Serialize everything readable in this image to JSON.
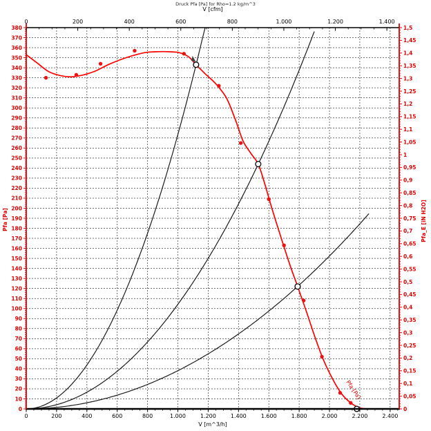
{
  "title": "Druck Pfa [Pa] for Rho=1.2 kg/m^3",
  "colors": {
    "axis_red": "#dd0000",
    "label_red": "#e00000",
    "curve_red": "#ff0000",
    "dot_red": "#ee1111",
    "black": "#000000",
    "curve_black": "#1a1a1a",
    "grid": "#3c3c3c",
    "marker_fill": "#ffffff"
  },
  "chart_data": {
    "type": "line",
    "title": "Druck Pfa [Pa] for Rho=1.2 kg/m^3",
    "grid": "dashed, every 200 m^3/h vertical, every 10 Pa horizontal",
    "legend": "none",
    "cfm_per_m3h": 0.5886,
    "axes": {
      "bottom": {
        "label": "V [m^3/h]",
        "min": 0,
        "max": 2460,
        "major": 200,
        "minor": 50,
        "labels": [
          "0",
          "200",
          "400",
          "600",
          "800",
          "1.000",
          "1.200",
          "1.400",
          "1.600",
          "1.800",
          "2.000",
          "2.200",
          "2.400"
        ]
      },
      "top": {
        "label": "V [cfm]",
        "min": 0,
        "max": 1448,
        "major": 200,
        "minor": 50,
        "labels": [
          "0",
          "200",
          "400",
          "600",
          "800",
          "1.000",
          "1.200",
          "1.400"
        ]
      },
      "left": {
        "label": "Pfa [Pa]",
        "min": 0,
        "max": 380,
        "major": 10,
        "minor": 2,
        "labels": [
          "0",
          "10",
          "20",
          "30",
          "40",
          "50",
          "60",
          "70",
          "80",
          "90",
          "100",
          "110",
          "120",
          "130",
          "140",
          "150",
          "160",
          "170",
          "180",
          "190",
          "200",
          "210",
          "220",
          "230",
          "240",
          "250",
          "260",
          "270",
          "280",
          "290",
          "300",
          "310",
          "320",
          "330",
          "340",
          "350",
          "360",
          "370",
          "380"
        ]
      },
      "right": {
        "label": "Pfa_E [iN H2O]",
        "min": 0,
        "max": 1.5,
        "major": 0.05,
        "minor": 0.01,
        "labels": [
          "0",
          "0,05",
          "0,1",
          "0,15",
          "0,2",
          "0,25",
          "0,3",
          "0,35",
          "0,4",
          "0,45",
          "0,5",
          "0,55",
          "0,6",
          "0,65",
          "0,7",
          "0,75",
          "0,8",
          "0,85",
          "0,9",
          "0,95",
          "1",
          "1,05",
          "1,1",
          "1,15",
          "1,2",
          "1,25",
          "1,3",
          "1,35",
          "1,4",
          "1,45",
          "1,5"
        ]
      }
    },
    "fan_curve": {
      "name": "fan-pressure-curve",
      "points": [
        [
          0,
          353
        ],
        [
          70,
          345
        ],
        [
          150,
          336
        ],
        [
          230,
          332
        ],
        [
          300,
          331
        ],
        [
          380,
          333
        ],
        [
          460,
          337
        ],
        [
          540,
          343
        ],
        [
          620,
          348
        ],
        [
          700,
          352
        ],
        [
          780,
          355
        ],
        [
          860,
          356
        ],
        [
          940,
          356
        ],
        [
          1010,
          355
        ],
        [
          1070,
          351
        ],
        [
          1120,
          343
        ],
        [
          1180,
          334
        ],
        [
          1250,
          324
        ],
        [
          1320,
          310
        ],
        [
          1380,
          288
        ],
        [
          1430,
          267
        ],
        [
          1480,
          255
        ],
        [
          1530,
          244
        ],
        [
          1570,
          226
        ],
        [
          1620,
          200
        ],
        [
          1680,
          171
        ],
        [
          1740,
          143
        ],
        [
          1790,
          122
        ],
        [
          1850,
          96
        ],
        [
          1910,
          69
        ],
        [
          1960,
          49
        ],
        [
          2020,
          30
        ],
        [
          2080,
          15
        ],
        [
          2140,
          6
        ],
        [
          2200,
          1
        ],
        [
          2260,
          0
        ]
      ],
      "label": "Pfa [Pa]",
      "label_at": {
        "v": 2110,
        "p": 27,
        "angle": 56
      }
    },
    "measured_points": [
      [
        130,
        330
      ],
      [
        330,
        333
      ],
      [
        490,
        344
      ],
      [
        715,
        357
      ],
      [
        1040,
        354
      ],
      [
        1270,
        322
      ],
      [
        1415,
        265
      ],
      [
        1600,
        209
      ],
      [
        1700,
        163
      ],
      [
        1830,
        108
      ],
      [
        1950,
        52
      ],
      [
        2070,
        16
      ],
      [
        2140,
        6
      ]
    ],
    "system_curves": [
      {
        "name": "system-curve-1",
        "k": 0.0002734,
        "v_end": 1180
      },
      {
        "name": "system-curve-2",
        "k": 0.0001042,
        "v_end": 1910
      },
      {
        "name": "system-curve-3",
        "k": 3.81e-05,
        "v_end": 2262
      }
    ],
    "operating_points": [
      [
        1120,
        343
      ],
      [
        1530,
        244
      ],
      [
        1790,
        122
      ],
      [
        2180,
        0
      ]
    ],
    "design_arrow": {
      "v": 1106,
      "p": 347
    }
  }
}
